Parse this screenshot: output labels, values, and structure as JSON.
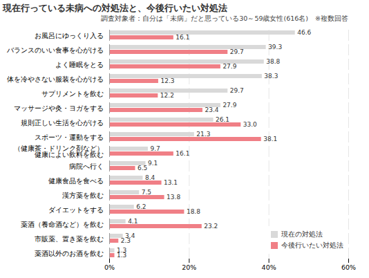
{
  "chart_data": {
    "type": "bar",
    "orientation": "horizontal",
    "title": "現在行っている未病への対処法と、今後行いたい対処法",
    "subtitle": "調査対象者：自分は「未病」だと思っている30～59歳女性(616名)　※複数回答",
    "categories": [
      "お風呂にゆっくり入る",
      "バランスのいい食事を心がける",
      "よく睡眠をとる",
      "体を冷やさない服装を心がける",
      "サプリメントを飲む",
      "マッサージや灸・ヨガをする",
      "規則正しい生活を心がける",
      "スポーツ・運動をする",
      "（健康茶・ドリンク剤など）\n健康によい飲料を飲む",
      "病院へ行く",
      "健康食品を食べる",
      "漢方薬を飲む",
      "ダイエットをする",
      "薬酒（養命酒など）を飲む",
      "市販薬、置き薬を飲む",
      "薬酒以外のお酒を飲む"
    ],
    "series": [
      {
        "name": "現在の対処法",
        "color": "#d9d9d9",
        "values": [
          46.6,
          39.3,
          38.8,
          38.3,
          29.7,
          27.9,
          26.1,
          21.3,
          9.7,
          9.1,
          8.4,
          7.5,
          6.2,
          4.1,
          3.4,
          1.3
        ],
        "value_labels": [
          "46.6",
          "39.3",
          "38.8",
          "38.3",
          "29.7",
          "27.9",
          "26.1",
          "21.3",
          "9.7",
          "9.1",
          "8.4",
          "7.5",
          "6.2",
          "4.1",
          "3.4",
          "1.3"
        ]
      },
      {
        "name": "今後行いたい対処法",
        "color": "#f07f86",
        "values": [
          16.1,
          29.7,
          27.9,
          12.3,
          12.2,
          23.4,
          33.0,
          38.1,
          16.1,
          6.5,
          13.1,
          13.8,
          18.8,
          23.2,
          2.3,
          1.3
        ],
        "value_labels": [
          "16.1",
          "29.7",
          "27.9",
          "12.3",
          "12.2",
          "23.4",
          "33.0",
          "38.1",
          "16.1",
          "6.5",
          "13.1",
          "13.8",
          "18.8",
          "23.2",
          "2.3",
          "1.3"
        ]
      }
    ],
    "xlim": [
      0,
      60
    ],
    "xticks": [
      {
        "value": 0,
        "label": "0%"
      },
      {
        "value": 20,
        "label": "20%"
      },
      {
        "value": 40,
        "label": "40%"
      },
      {
        "value": 60,
        "label": "60%"
      }
    ],
    "grid": true,
    "data_labels": true,
    "legend": "bottom-right"
  }
}
